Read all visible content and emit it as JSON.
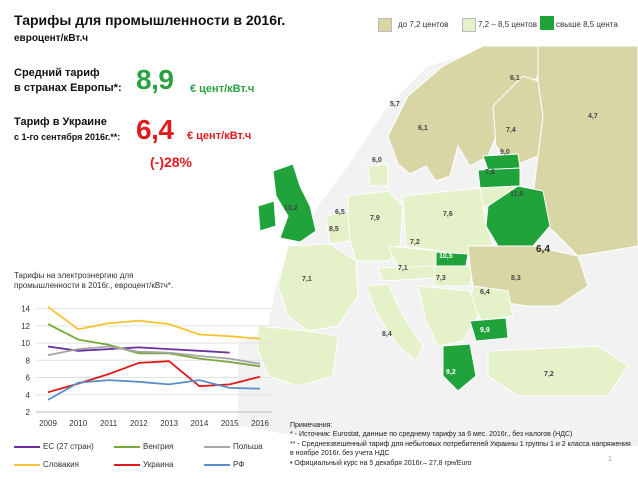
{
  "header": {
    "title": "Тарифы для промышленности в 2016г.",
    "subtitle": "евроцент/кВт.ч"
  },
  "legend": [
    {
      "label": "до 7,2 центов",
      "color": "#d9d6a6"
    },
    {
      "label": "7,2 – 8,5 центов",
      "color": "#e4f1c9"
    },
    {
      "label": "свыше 8,5 цента",
      "color": "#20a33b"
    }
  ],
  "europe": {
    "label_line1": "Средний тариф",
    "label_line2": "в странах Европы*:",
    "value": "8,9",
    "unit": "€ цент/кВт.ч",
    "color": "#2aa33f"
  },
  "ukraine": {
    "label_line1": "Тариф в Украине",
    "label_line2": "с 1-го сентября 2016г.**:",
    "value": "6,4",
    "unit": "€ цент/кВт.ч",
    "change": "(-)28%",
    "color": "#e01b1b"
  },
  "map": {
    "labels": [
      {
        "text": "6,1"
      },
      {
        "text": "5,7"
      },
      {
        "text": "4,7"
      },
      {
        "text": "6,1"
      },
      {
        "text": "7,4"
      },
      {
        "text": "9,0"
      },
      {
        "text": "6,0"
      },
      {
        "text": "7,8"
      },
      {
        "text": "11,0"
      },
      {
        "text": "13,2"
      },
      {
        "text": "6,5"
      },
      {
        "text": "7,9"
      },
      {
        "text": "7,6"
      },
      {
        "text": "8,5"
      },
      {
        "text": "7,2"
      },
      {
        "text": "6,4"
      },
      {
        "text": "10,5"
      },
      {
        "text": "7,1"
      },
      {
        "text": "7,1"
      },
      {
        "text": "7,3"
      },
      {
        "text": "8,3"
      },
      {
        "text": "6,4"
      },
      {
        "text": "8,4"
      },
      {
        "text": "9,9"
      },
      {
        "text": "9,2"
      },
      {
        "text": "7,2"
      }
    ]
  },
  "chart": {
    "title_line1": "Тарифы на электроэнергию для",
    "title_line2": "промышленности в 2016г., евроцент/кВтч*."
  },
  "chart_data": {
    "type": "line",
    "title": "Тарифы на электроэнергию для промышленности в 2016г., евроцент/кВтч*.",
    "x": [
      "2009",
      "2010",
      "2011",
      "2012",
      "2013",
      "2014",
      "2015",
      "2016"
    ],
    "ylim": [
      2,
      15
    ],
    "yticks": [
      2,
      4,
      6,
      8,
      10,
      12,
      14
    ],
    "grid": true,
    "legend_position": "bottom",
    "series": [
      {
        "name": "ЕС (27 стран)",
        "color": "#6b2fa0",
        "values": [
          9.6,
          9.1,
          9.3,
          9.5,
          9.3,
          9.1,
          8.9,
          null
        ]
      },
      {
        "name": "Венгрия",
        "color": "#78a83a",
        "values": [
          12.2,
          10.4,
          9.8,
          8.8,
          8.8,
          8.2,
          7.8,
          7.3
        ]
      },
      {
        "name": "Польша",
        "color": "#a6a6a6",
        "values": [
          8.6,
          9.3,
          9.6,
          9.0,
          8.9,
          8.5,
          8.2,
          7.6
        ]
      },
      {
        "name": "Словакия",
        "color": "#f5c333",
        "values": [
          14.2,
          11.6,
          12.3,
          12.6,
          12.2,
          11.0,
          10.8,
          10.5
        ]
      },
      {
        "name": "Украина",
        "color": "#e01b1b",
        "values": [
          4.3,
          5.3,
          6.4,
          7.7,
          7.9,
          5.0,
          5.2,
          6.1
        ]
      },
      {
        "name": "РФ",
        "color": "#5b8fc9",
        "values": [
          3.4,
          5.4,
          5.7,
          5.5,
          5.2,
          5.7,
          4.8,
          4.7
        ]
      }
    ]
  },
  "notes": {
    "heading": "Примечания:",
    "line1": "* -   Источник: Eurostat, данные по среднему тарифу за 6 мес. 2016г., без налогов (НДС)",
    "line2": "** -   Средневзвешенный тариф для небытовых потребителей Украины 1 группы 1 и 2 класса напряжения в ноябре 2016г. без учета НДС",
    "line3": "•       Официальный курс на 5 декабря 2016г.– 27,8 грн/Euro"
  },
  "page_number": "1"
}
